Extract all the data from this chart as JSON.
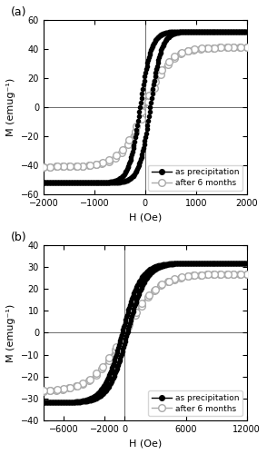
{
  "panel_a": {
    "label": "(a)",
    "xlim": [
      -2000,
      2000
    ],
    "ylim": [
      -60,
      60
    ],
    "xticks": [
      -2000,
      -1000,
      0,
      1000,
      2000
    ],
    "yticks": [
      -60,
      -40,
      -20,
      0,
      20,
      40,
      60
    ],
    "xlabel": "H (Oe)",
    "ylabel": "M (emug⁻¹)",
    "Ms_precip": 52,
    "Ms_6mo": 41,
    "Hc_precip": 100,
    "Hc_6mo": 20,
    "sf_precip": 220,
    "sf_6mo": 480
  },
  "panel_b": {
    "label": "(b)",
    "xlim": [
      -8000,
      12000
    ],
    "ylim": [
      -40,
      40
    ],
    "xticks": [
      -6000,
      -2000,
      0,
      6000,
      12000
    ],
    "ytick_vals": [
      -40,
      -30,
      -20,
      -10,
      0,
      10,
      20,
      30,
      40
    ],
    "xlabel": "H (Oe)",
    "ylabel": "M (emug⁻¹)",
    "Ms_precip": 32,
    "Ms_6mo": 27,
    "Hc_precip": 250,
    "Hc_6mo": 50,
    "sf_precip": 1800,
    "sf_6mo": 3200
  },
  "legend_labels": [
    "as precipitation",
    "after 6 months"
  ],
  "color_precip": "#000000",
  "color_6mo": "#aaaaaa",
  "lw_precip": 1.5,
  "lw_6mo": 1.2,
  "ms_precip": 3.0,
  "ms_6mo": 5.5,
  "n_curve": 300,
  "n_circles": 32
}
